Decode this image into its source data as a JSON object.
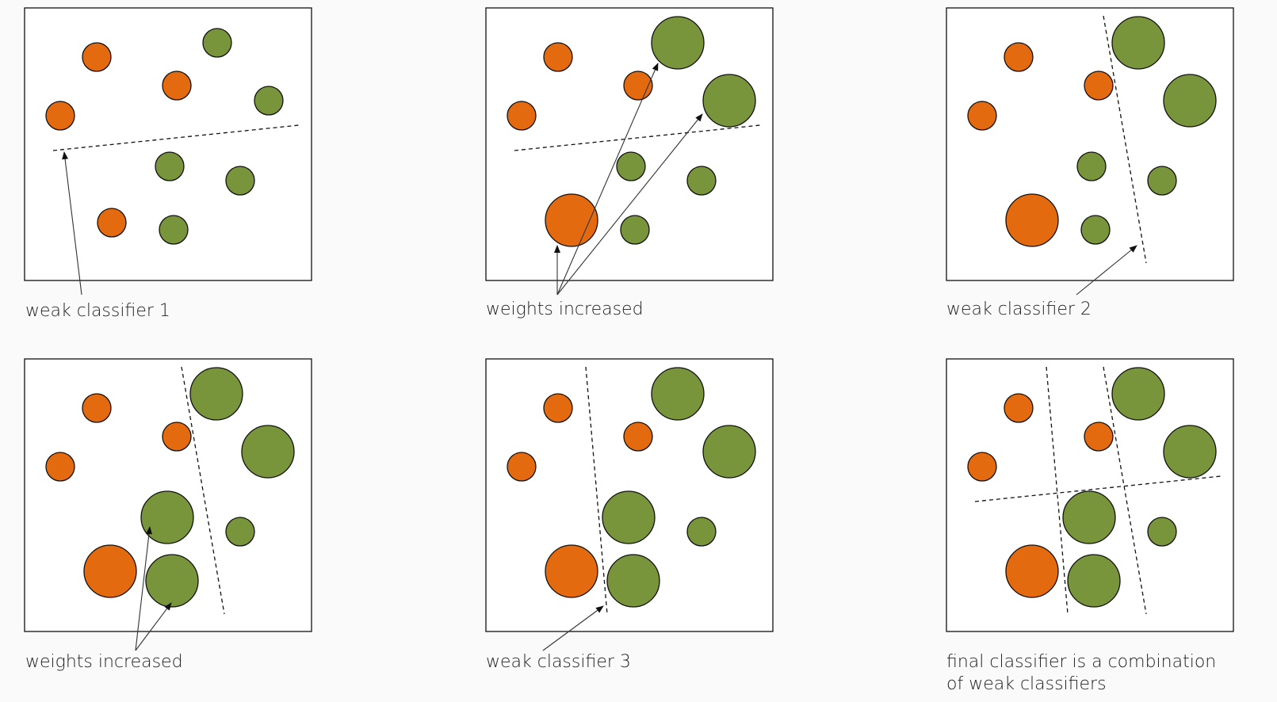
{
  "colors": {
    "orange": "#e46a0f",
    "green": "#78953b",
    "stroke": "#111111",
    "background": "#fafafa"
  },
  "labels": {
    "p1": "weak classifier 1",
    "p2": "weights increased",
    "p3": "weak classifier 2",
    "p4": "weights increased",
    "p5": "weak classifier 3",
    "p6_line1": "final classifier is a combination",
    "p6_line2": "of weak classifiers"
  },
  "panels": [
    {
      "id": "p1",
      "enlarged": []
    },
    {
      "id": "p2",
      "enlarged": [
        3,
        4,
        5
      ]
    },
    {
      "id": "p3",
      "enlarged": [
        3,
        4,
        5
      ]
    },
    {
      "id": "p4",
      "enlarged": [
        3,
        4,
        5,
        6,
        8
      ]
    },
    {
      "id": "p5",
      "enlarged": [
        3,
        4,
        5,
        6,
        8
      ]
    },
    {
      "id": "p6",
      "enlarged": [
        3,
        4,
        5,
        6,
        8
      ]
    }
  ]
}
